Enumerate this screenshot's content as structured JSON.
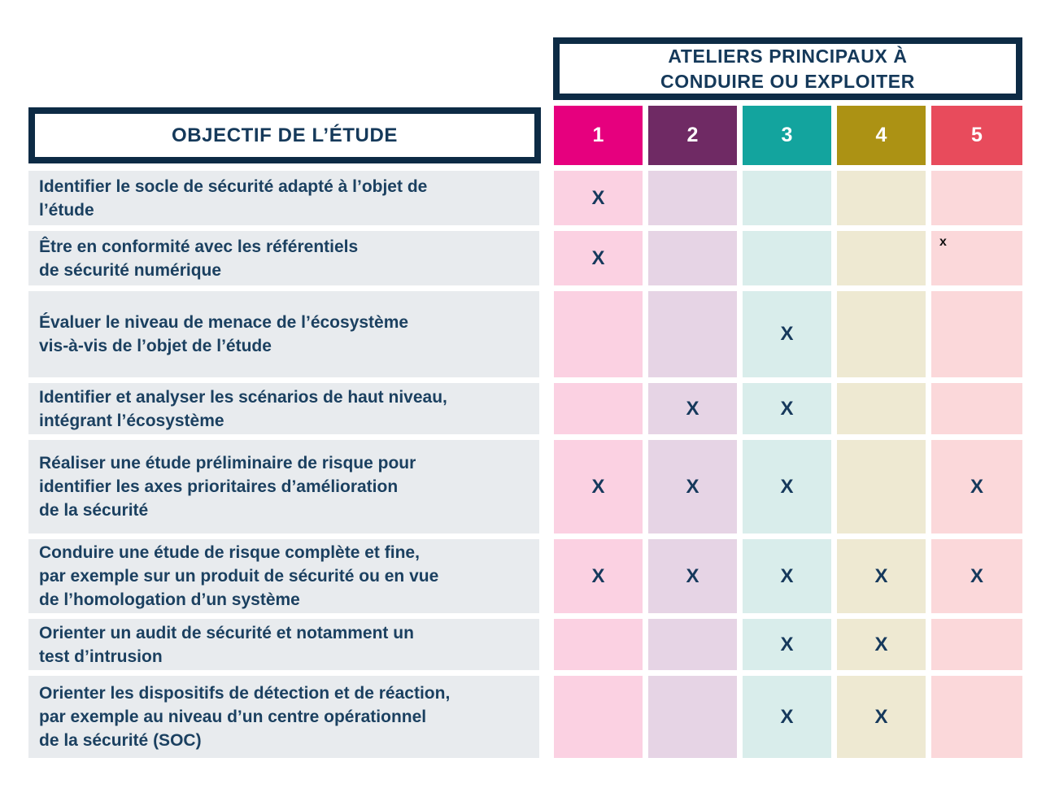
{
  "header": {
    "workshops_title": [
      "ATELIERS PRINCIPAUX À",
      "CONDUIRE OU EXPLOITER"
    ],
    "objective_title": "OBJECTIF DE L’ÉTUDE"
  },
  "columns": [
    {
      "label": "1",
      "color": "#e6007e",
      "light_color": "#fbd1e2"
    },
    {
      "label": "2",
      "color": "#6f2a64",
      "light_color": "#e6d4e5"
    },
    {
      "label": "3",
      "color": "#13a49e",
      "light_color": "#d9edeb"
    },
    {
      "label": "4",
      "color": "#ac9214",
      "light_color": "#eee9d2"
    },
    {
      "label": "5",
      "color": "#e84b5c",
      "light_color": "#fbd8da"
    }
  ],
  "colors": {
    "border_navy": "#0d2b45",
    "title_text": "#15395a",
    "body_text": "#1b4060",
    "mark_navy": "#16395c",
    "small_mark_black": "#111111",
    "row_label_bg": "#e8ebee"
  },
  "rows": [
    {
      "objective": [
        "Identifier le socle de sécurité adapté à l’objet de",
        "l’étude"
      ],
      "marks": [
        "X",
        "",
        "",
        "",
        ""
      ]
    },
    {
      "objective": [
        "Être en conformité avec les référentiels",
        "de sécurité numérique"
      ],
      "marks": [
        "X",
        "",
        "",
        "",
        "x"
      ]
    },
    {
      "objective": [
        "Évaluer le niveau de menace de l’écosystème",
        "vis-à-vis de l’objet de l’étude"
      ],
      "marks": [
        "",
        "",
        "X",
        "",
        ""
      ]
    },
    {
      "objective": [
        "Identifier et analyser les scénarios de haut niveau,",
        "intégrant l’écosystème"
      ],
      "marks": [
        "",
        "X",
        "X",
        "",
        ""
      ]
    },
    {
      "objective": [
        "Réaliser une étude préliminaire de risque pour",
        "identifier les axes prioritaires d’amélioration",
        "de la sécurité"
      ],
      "marks": [
        "X",
        "X",
        "X",
        "",
        "X"
      ]
    },
    {
      "objective": [
        "Conduire une étude de risque complète et fine,",
        "par exemple sur un produit de sécurité ou en vue",
        "de l’homologation d’un système"
      ],
      "marks": [
        "X",
        "X",
        "X",
        "X",
        "X"
      ]
    },
    {
      "objective": [
        "Orienter un audit de sécurité et notamment un",
        "test d’intrusion"
      ],
      "marks": [
        "",
        "",
        "X",
        "X",
        ""
      ]
    },
    {
      "objective": [
        "Orienter les dispositifs de détection et de réaction,",
        "par exemple au niveau d’un centre opérationnel",
        "de la sécurité (SOC)"
      ],
      "marks": [
        "",
        "",
        "X",
        "X",
        ""
      ]
    }
  ]
}
